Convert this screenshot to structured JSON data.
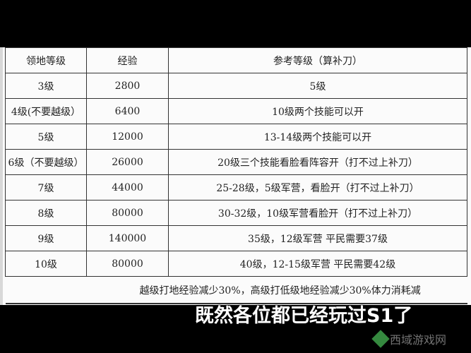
{
  "table": {
    "headers": [
      "领地等级",
      "经验",
      "参考等级（算补刀）"
    ],
    "rows": [
      [
        "3级",
        "2800",
        "5级"
      ],
      [
        "4级(不要越级）",
        "6400",
        "10级两个技能可以开"
      ],
      [
        "5级",
        "12000",
        "13-14级两个技能可以开"
      ],
      [
        "6级（不要越级）",
        "26000",
        "20级三个技能看脸看阵容开（打不过上补刀）"
      ],
      [
        "7级",
        "44000",
        "25-28级，5级军营，看脸开（打不过上补刀）"
      ],
      [
        "8级",
        "80000",
        "30-32级，10级军营看脸开（打不过上补刀）"
      ],
      [
        "9级",
        "140000",
        "35级，12级军营 平民需要37级"
      ],
      [
        "10级",
        "80000",
        "40级，12-15级军营 平民需要42级"
      ]
    ],
    "note": "越级打地经验减少30%，高级打低级地经验减少30%体力消耗减"
  },
  "subtitle": "既然各位都已经玩过S1了",
  "watermark": {
    "text": "西域游戏网",
    "color": "#3fa14a"
  }
}
